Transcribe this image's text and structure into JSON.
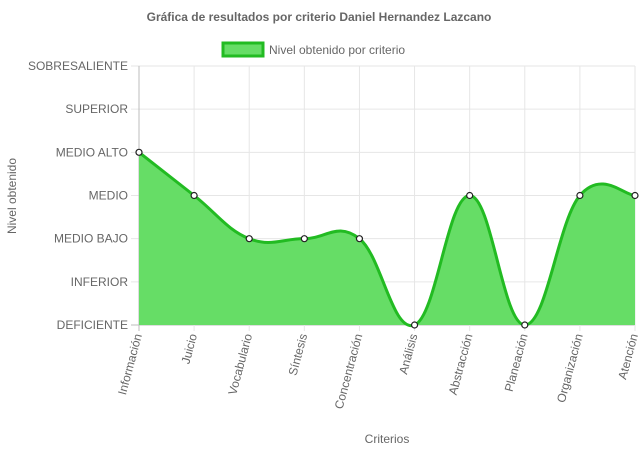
{
  "chart_data": {
    "type": "area",
    "title": "Gráfica de resultados por criterio Daniel Hernandez Lazcano",
    "xlabel": "Criterios",
    "ylabel": "Nivel obtenido",
    "categories": [
      "Información",
      "Juicio",
      "Vocabulario",
      "Síntesis",
      "Concentración",
      "Análisis",
      "Abstracción",
      "Planeación",
      "Organización",
      "Atención"
    ],
    "y_levels": [
      "DEFICIENTE",
      "INFERIOR",
      "MEDIO BAJO",
      "MEDIO",
      "MEDIO ALTO",
      "SUPERIOR",
      "SOBRESALIENTE"
    ],
    "ylim": [
      0,
      6
    ],
    "grid": true,
    "legend_position": "top",
    "series": [
      {
        "name": "Nivel obtenido por criterio",
        "values": [
          4,
          3,
          2,
          2,
          2,
          0,
          3,
          0,
          3,
          3
        ],
        "fill_color": "#66dd66",
        "line_color": "#22bb22"
      }
    ]
  }
}
